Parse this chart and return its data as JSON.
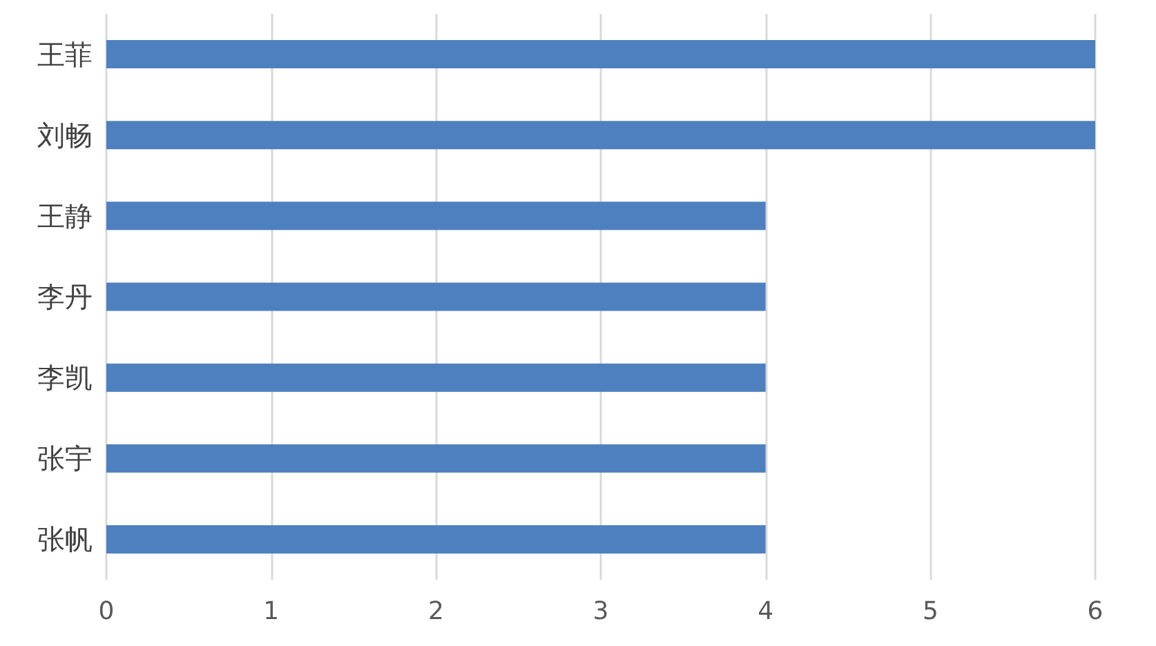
{
  "chart_data": {
    "type": "bar",
    "orientation": "horizontal",
    "categories": [
      "王菲",
      "刘畅",
      "王静",
      "李丹",
      "李凯",
      "张宇",
      "张帆"
    ],
    "values": [
      6,
      6,
      4,
      4,
      4,
      4,
      4
    ],
    "color": "#4e80bf",
    "xlim": [
      0,
      6
    ],
    "xticks": [
      0,
      1,
      2,
      3,
      4,
      5,
      6
    ],
    "grid": "x"
  }
}
